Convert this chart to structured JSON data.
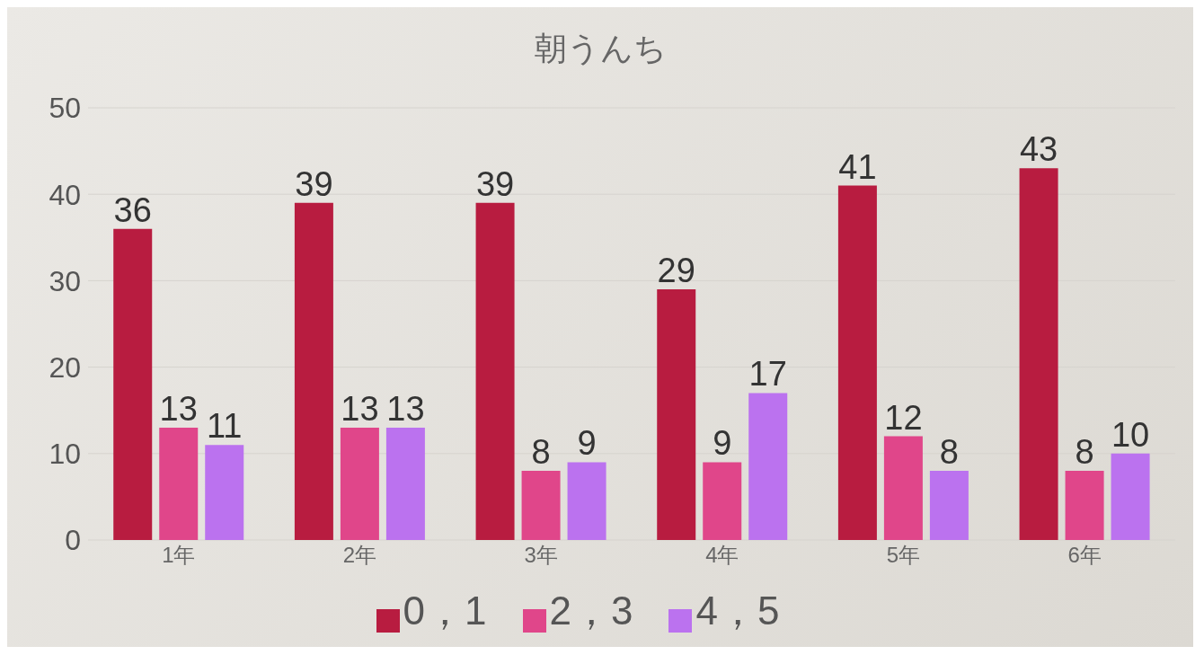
{
  "chart_data": {
    "type": "bar",
    "title": "朝うんち",
    "categories": [
      "1年",
      "2年",
      "3年",
      "4年",
      "5年",
      "6年"
    ],
    "series": [
      {
        "name": "0，1",
        "color": "#b81c40",
        "values": [
          36,
          39,
          39,
          29,
          41,
          43
        ]
      },
      {
        "name": "2，3",
        "color": "#e0468a",
        "values": [
          13,
          13,
          8,
          9,
          12,
          8
        ]
      },
      {
        "name": "4，5",
        "color": "#bb72ef",
        "values": [
          11,
          13,
          9,
          17,
          8,
          10
        ]
      }
    ],
    "ylim": [
      0,
      50
    ],
    "yticks": [
      0,
      10,
      20,
      30,
      40,
      50
    ],
    "grid": "y",
    "legend": "bottom",
    "data_labels": true
  }
}
